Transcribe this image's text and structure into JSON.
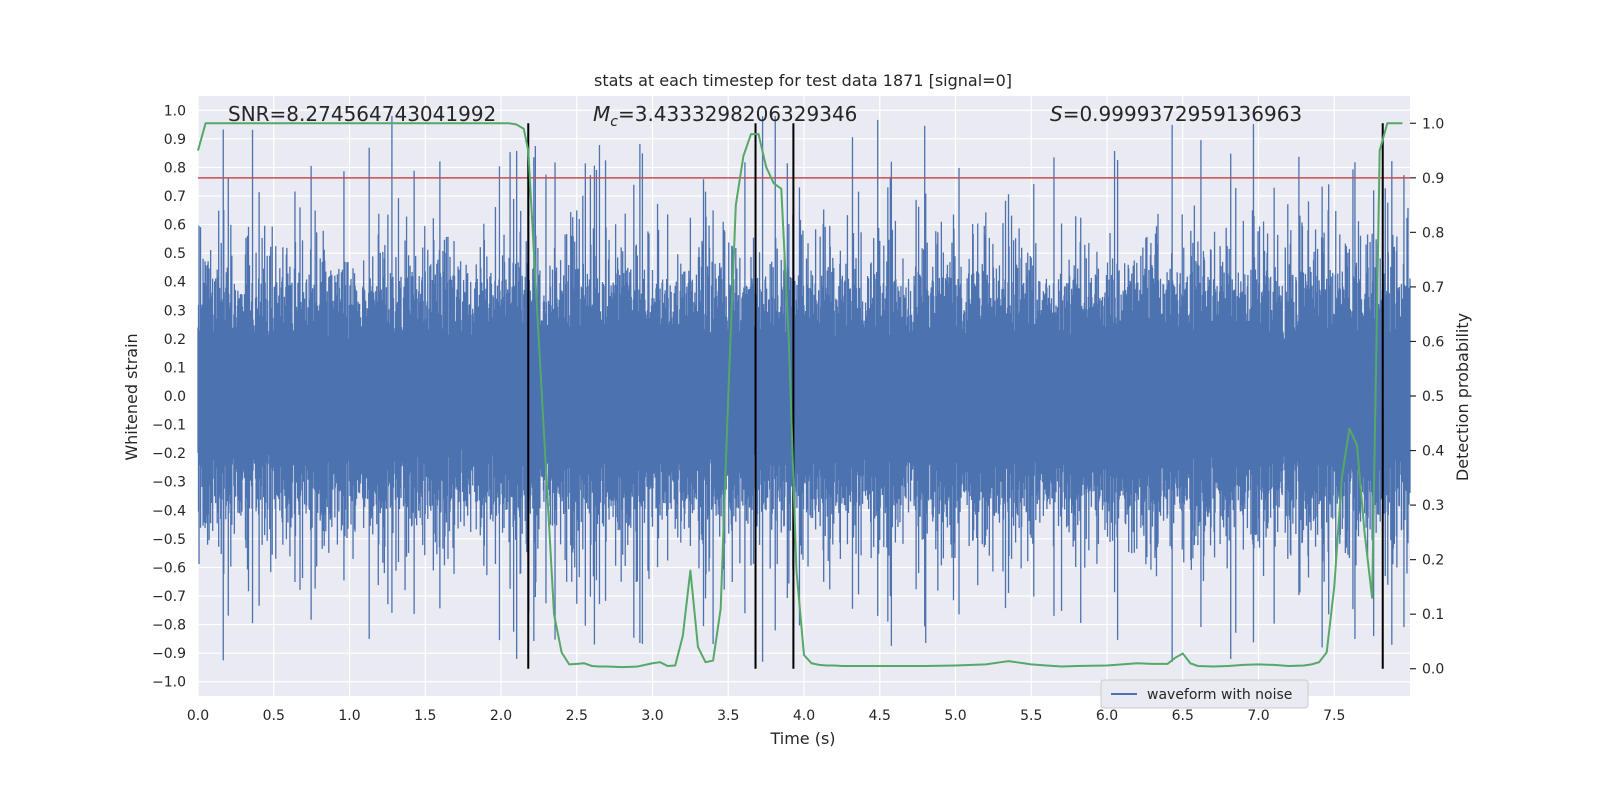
{
  "chart_data": {
    "type": "line",
    "title": "stats at each timestep for test data 1871 [signal=0]",
    "xlabel": "Time (s)",
    "ylabel": "Whitened strain",
    "ylabel_right": "Detection probability",
    "xlim": [
      0.0,
      8.0
    ],
    "ylim": [
      -1.05,
      1.05
    ],
    "ylim_right": [
      -0.05,
      1.05
    ],
    "x_ticks": [
      "0.0",
      "0.5",
      "1.0",
      "1.5",
      "2.0",
      "2.5",
      "3.0",
      "3.5",
      "4.0",
      "4.5",
      "5.0",
      "5.5",
      "6.0",
      "6.5",
      "7.0",
      "7.5"
    ],
    "y_ticks": [
      "1.0",
      "0.9",
      "0.8",
      "0.7",
      "0.6",
      "0.5",
      "0.4",
      "0.3",
      "0.2",
      "0.1",
      "0.0",
      "−0.1",
      "−0.2",
      "−0.3",
      "−0.4",
      "−0.5",
      "−0.6",
      "−0.7",
      "−0.8",
      "−0.9",
      "−1.0"
    ],
    "y_right_ticks": [
      "1.0",
      "0.9",
      "0.8",
      "0.7",
      "0.6",
      "0.5",
      "0.4",
      "0.3",
      "0.2",
      "0.1",
      "0.0"
    ],
    "annotations": {
      "snr": "SNR=8.274564743041992",
      "mc_symbol": "M",
      "mc_sub": "c",
      "mc_value": "=3.4333298206329346",
      "s_symbol": "S",
      "s_value": "=0.9999372959136963"
    },
    "threshold_right": 0.9,
    "vertical_lines_x": [
      2.18,
      3.68,
      3.93,
      7.82
    ],
    "legend": [
      "waveform with noise"
    ],
    "series": [
      {
        "name": "waveform with noise",
        "color": "#4c72b0",
        "envelope": "noise",
        "approx_amplitude_range": [
          -0.93,
          0.98
        ]
      },
      {
        "name": "detection probability",
        "axis": "right",
        "color": "#55a868",
        "x": [
          0.0,
          0.05,
          0.1,
          0.2,
          0.4,
          0.6,
          0.8,
          1.0,
          1.2,
          1.4,
          1.6,
          1.8,
          2.0,
          2.05,
          2.1,
          2.15,
          2.18,
          2.22,
          2.3,
          2.35,
          2.4,
          2.45,
          2.5,
          2.55,
          2.6,
          2.65,
          2.7,
          2.8,
          2.9,
          3.0,
          3.05,
          3.1,
          3.15,
          3.2,
          3.25,
          3.3,
          3.35,
          3.4,
          3.45,
          3.5,
          3.55,
          3.6,
          3.65,
          3.7,
          3.75,
          3.8,
          3.85,
          3.9,
          3.95,
          4.0,
          4.05,
          4.1,
          4.15,
          4.2,
          4.25,
          4.4,
          4.6,
          4.8,
          5.0,
          5.2,
          5.3,
          5.35,
          5.4,
          5.45,
          5.5,
          5.6,
          5.7,
          5.8,
          6.0,
          6.1,
          6.2,
          6.3,
          6.4,
          6.45,
          6.5,
          6.55,
          6.6,
          6.7,
          6.8,
          6.9,
          7.0,
          7.1,
          7.2,
          7.3,
          7.35,
          7.4,
          7.45,
          7.5,
          7.55,
          7.6,
          7.65,
          7.7,
          7.75,
          7.8,
          7.85,
          7.9,
          7.95
        ],
        "values": [
          0.95,
          1.0,
          1.0,
          1.0,
          1.0,
          1.0,
          1.0,
          1.0,
          1.0,
          1.0,
          1.0,
          1.0,
          1.0,
          1.0,
          0.998,
          0.99,
          0.95,
          0.75,
          0.35,
          0.1,
          0.03,
          0.008,
          0.009,
          0.01,
          0.005,
          0.004,
          0.004,
          0.003,
          0.004,
          0.01,
          0.012,
          0.005,
          0.006,
          0.06,
          0.18,
          0.04,
          0.012,
          0.015,
          0.11,
          0.5,
          0.85,
          0.94,
          0.98,
          0.98,
          0.92,
          0.89,
          0.88,
          0.6,
          0.18,
          0.025,
          0.01,
          0.007,
          0.006,
          0.006,
          0.005,
          0.005,
          0.005,
          0.005,
          0.006,
          0.008,
          0.012,
          0.014,
          0.012,
          0.01,
          0.008,
          0.006,
          0.004,
          0.005,
          0.006,
          0.008,
          0.01,
          0.009,
          0.009,
          0.02,
          0.028,
          0.01,
          0.005,
          0.004,
          0.005,
          0.007,
          0.008,
          0.007,
          0.005,
          0.006,
          0.008,
          0.012,
          0.03,
          0.15,
          0.35,
          0.44,
          0.41,
          0.25,
          0.13,
          0.95,
          1.0,
          1.0,
          1.0
        ]
      }
    ],
    "colors": {
      "background": "#eaeaf2",
      "grid": "#ffffff",
      "threshold": "#c44e52",
      "vertical_line": "#000000"
    }
  }
}
